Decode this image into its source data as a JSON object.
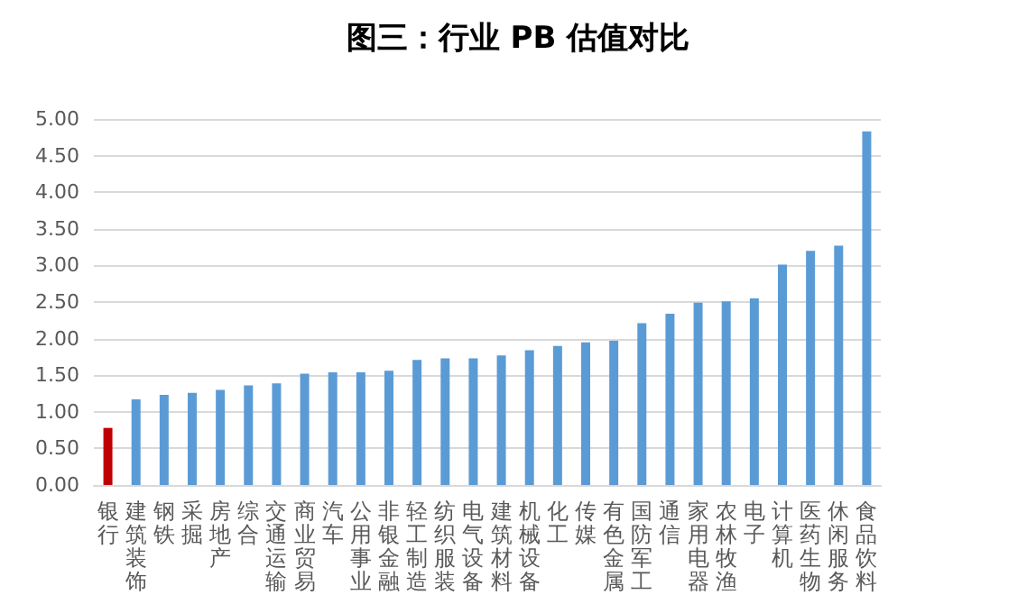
{
  "chart_data": {
    "type": "bar",
    "title": "图三：行业 PB 估值对比",
    "categories": [
      "银行",
      "建筑装饰",
      "钢铁",
      "采掘",
      "房地产",
      "综合",
      "交通运输",
      "商业贸易",
      "汽车",
      "公用事业",
      "非银金融",
      "轻工制造",
      "纺织服装",
      "电气设备",
      "建筑材料",
      "机械设备",
      "化工",
      "传媒",
      "有色金属",
      "国防军工",
      "通信",
      "家用电器",
      "农林牧渔",
      "电子",
      "计算机",
      "医药生物",
      "休闲服务",
      "食品饮料"
    ],
    "values": [
      0.78,
      1.17,
      1.23,
      1.26,
      1.3,
      1.36,
      1.39,
      1.52,
      1.54,
      1.54,
      1.56,
      1.71,
      1.73,
      1.73,
      1.77,
      1.84,
      1.9,
      1.95,
      1.97,
      2.21,
      2.34,
      2.49,
      2.51,
      2.55,
      3.01,
      3.2,
      3.27,
      4.83
    ],
    "colors": [
      "#c00000",
      "#5b9bd5",
      "#5b9bd5",
      "#5b9bd5",
      "#5b9bd5",
      "#5b9bd5",
      "#5b9bd5",
      "#5b9bd5",
      "#5b9bd5",
      "#5b9bd5",
      "#5b9bd5",
      "#5b9bd5",
      "#5b9bd5",
      "#5b9bd5",
      "#5b9bd5",
      "#5b9bd5",
      "#5b9bd5",
      "#5b9bd5",
      "#5b9bd5",
      "#5b9bd5",
      "#5b9bd5",
      "#5b9bd5",
      "#5b9bd5",
      "#5b9bd5",
      "#5b9bd5",
      "#5b9bd5",
      "#5b9bd5",
      "#5b9bd5"
    ],
    "ylim": [
      0,
      5
    ],
    "yticks": [
      {
        "value": 0,
        "label": "0.00"
      },
      {
        "value": 0.5,
        "label": "0.50"
      },
      {
        "value": 1,
        "label": "1.00"
      },
      {
        "value": 1.5,
        "label": "1.50"
      },
      {
        "value": 2,
        "label": "2.00"
      },
      {
        "value": 2.5,
        "label": "2.50"
      },
      {
        "value": 3,
        "label": "3.00"
      },
      {
        "value": 3.5,
        "label": "3.50"
      },
      {
        "value": 4,
        "label": "4.00"
      },
      {
        "value": 4.5,
        "label": "4.50"
      },
      {
        "value": 5,
        "label": "5.00"
      }
    ],
    "grid": "y"
  }
}
